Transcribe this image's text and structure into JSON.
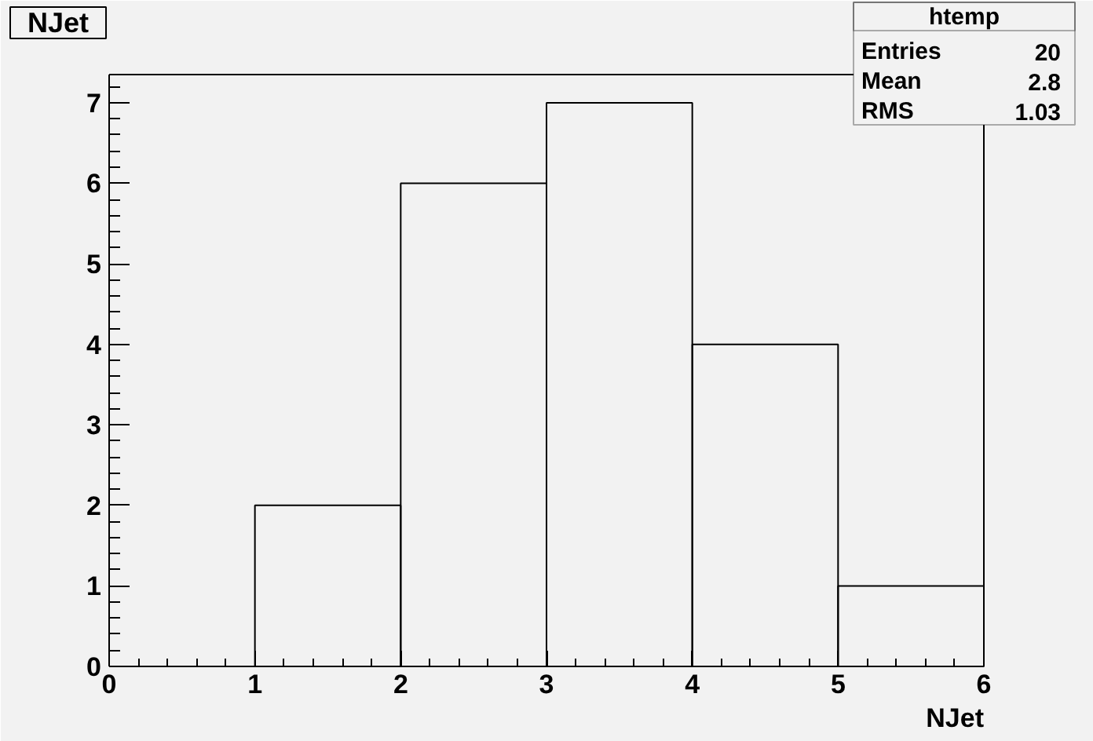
{
  "chart_data": {
    "type": "histogram",
    "title": "NJet",
    "xlabel": "NJet",
    "bins": [
      0,
      1,
      2,
      3,
      4,
      5,
      6
    ],
    "values": [
      0,
      2,
      6,
      7,
      4,
      1
    ],
    "color": "#000000",
    "xlim": [
      0,
      6
    ],
    "ylim": [
      0,
      7.35
    ],
    "xticks": [
      0,
      {
        "value": 0.2,
        "label": null
      },
      {
        "value": 0.4,
        "label": null
      },
      {
        "value": 0.6,
        "label": null
      },
      {
        "value": 0.8,
        "label": null
      },
      1,
      {
        "value": 1.2,
        "label": null
      },
      {
        "value": 1.4,
        "label": null
      },
      {
        "value": 1.6,
        "label": null
      },
      {
        "value": 1.8,
        "label": null
      },
      2,
      {
        "value": 2.2,
        "label": null
      },
      {
        "value": 2.4,
        "label": null
      },
      {
        "value": 2.6,
        "label": null
      },
      {
        "value": 2.8,
        "label": null
      },
      3,
      {
        "value": 3.2,
        "label": null
      },
      {
        "value": 3.4,
        "label": null
      },
      {
        "value": 3.6,
        "label": null
      },
      {
        "value": 3.8,
        "label": null
      },
      4,
      {
        "value": 4.2,
        "label": null
      },
      {
        "value": 4.4,
        "label": null
      },
      {
        "value": 4.6,
        "label": null
      },
      {
        "value": 4.8,
        "label": null
      },
      5,
      {
        "value": 5.2,
        "label": null
      },
      {
        "value": 5.4,
        "label": null
      },
      {
        "value": 5.6,
        "label": null
      },
      {
        "value": 5.8,
        "label": null
      },
      6
    ],
    "yticks": [
      0,
      {
        "value": 0.2,
        "label": null
      },
      {
        "value": 0.4,
        "label": null
      },
      {
        "value": 0.6,
        "label": null
      },
      {
        "value": 0.8,
        "label": null
      },
      1,
      {
        "value": 1.2,
        "label": null
      },
      {
        "value": 1.4,
        "label": null
      },
      {
        "value": 1.6,
        "label": null
      },
      {
        "value": 1.8,
        "label": null
      },
      2,
      {
        "value": 2.2,
        "label": null
      },
      {
        "value": 2.4,
        "label": null
      },
      {
        "value": 2.6,
        "label": null
      },
      {
        "value": 2.8,
        "label": null
      },
      3,
      {
        "value": 3.2,
        "label": null
      },
      {
        "value": 3.4,
        "label": null
      },
      {
        "value": 3.6,
        "label": null
      },
      {
        "value": 3.8,
        "label": null
      },
      4,
      {
        "value": 4.2,
        "label": null
      },
      {
        "value": 4.4,
        "label": null
      },
      {
        "value": 4.6,
        "label": null
      },
      {
        "value": 4.8,
        "label": null
      },
      5,
      {
        "value": 5.2,
        "label": null
      },
      {
        "value": 5.4,
        "label": null
      },
      {
        "value": 5.6,
        "label": null
      },
      {
        "value": 5.8,
        "label": null
      },
      6,
      {
        "value": 6.2,
        "label": null
      },
      {
        "value": 6.4,
        "label": null
      },
      {
        "value": 6.6,
        "label": null
      },
      {
        "value": 6.8,
        "label": null
      },
      7,
      {
        "value": 7.2,
        "label": null
      }
    ],
    "annotations": [
      "htemp",
      "Entries",
      "20",
      "Mean",
      "2.8",
      "RMS",
      "1.03"
    ]
  }
}
